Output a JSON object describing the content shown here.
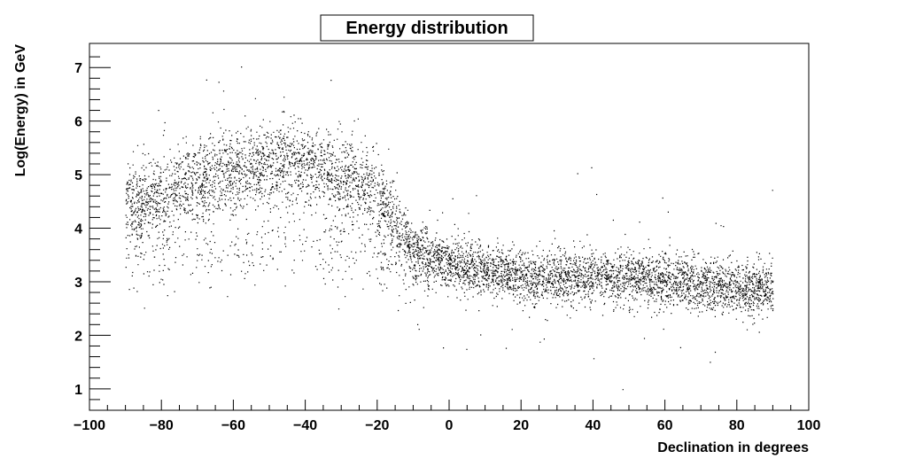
{
  "chart_data": {
    "type": "scatter",
    "title": "Energy distribution",
    "xlabel": "Declination in degrees",
    "ylabel": "Log(Energy) in GeV",
    "xlim": [
      -100,
      100
    ],
    "ylim": [
      0.6,
      7.45
    ],
    "x_ticks": [
      -100,
      -80,
      -60,
      -40,
      -20,
      0,
      20,
      40,
      60,
      80,
      100
    ],
    "x_tick_labels": [
      "−100",
      "−80",
      "−60",
      "−40",
      "−20",
      "0",
      "20",
      "40",
      "60",
      "80",
      "100"
    ],
    "y_ticks": [
      1,
      2,
      3,
      4,
      5,
      6,
      7
    ],
    "y_tick_labels": [
      "1",
      "2",
      "3",
      "4",
      "5",
      "6",
      "7"
    ],
    "grid": false,
    "legend": "none",
    "marker_color": "#000000",
    "band": {
      "x_range": [
        -90,
        90
      ],
      "centerline": [
        {
          "x": -90,
          "y": 4.4
        },
        {
          "x": -80,
          "y": 4.6
        },
        {
          "x": -70,
          "y": 4.9
        },
        {
          "x": -60,
          "y": 5.1
        },
        {
          "x": -50,
          "y": 5.2
        },
        {
          "x": -40,
          "y": 5.2
        },
        {
          "x": -30,
          "y": 5.0
        },
        {
          "x": -20,
          "y": 4.6
        },
        {
          "x": -10,
          "y": 3.6
        },
        {
          "x": 0,
          "y": 3.3
        },
        {
          "x": 10,
          "y": 3.2
        },
        {
          "x": 20,
          "y": 3.1
        },
        {
          "x": 40,
          "y": 3.1
        },
        {
          "x": 60,
          "y": 3.0
        },
        {
          "x": 80,
          "y": 2.9
        },
        {
          "x": 90,
          "y": 2.9
        }
      ],
      "secondary_lower_band": [
        {
          "x": -90,
          "y": 3.6
        },
        {
          "x": -70,
          "y": 3.5
        },
        {
          "x": -50,
          "y": 3.7
        },
        {
          "x": -30,
          "y": 3.6
        },
        {
          "x": -10,
          "y": 3.2
        }
      ]
    }
  }
}
